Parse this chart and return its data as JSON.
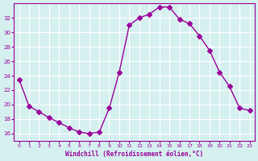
{
  "x": [
    0,
    1,
    2,
    3,
    4,
    5,
    6,
    7,
    8,
    9,
    10,
    11,
    12,
    13,
    14,
    15,
    16,
    17,
    18,
    19,
    20,
    21,
    22,
    23
  ],
  "y": [
    23.5,
    19.8,
    19.0,
    18.2,
    17.5,
    16.8,
    16.2,
    16.0,
    16.2,
    19.5,
    24.5,
    31.0,
    32.0,
    32.5,
    33.5,
    33.5,
    31.8,
    31.2,
    29.5,
    27.5,
    24.5,
    22.5,
    19.5,
    19.2
  ],
  "line_color": "#990099",
  "marker": "D",
  "marker_size": 3,
  "bg_color": "#d6f0f0",
  "grid_color": "#ffffff",
  "xlabel": "Windchill (Refroidissement éolien,°C)",
  "xlabel_color": "#990099",
  "tick_color": "#990099",
  "ylim": [
    15,
    34
  ],
  "xlim": [
    -0.5,
    23.5
  ],
  "yticks": [
    16,
    18,
    20,
    22,
    24,
    26,
    28,
    30,
    32
  ],
  "xticks": [
    0,
    1,
    2,
    3,
    4,
    5,
    6,
    7,
    8,
    9,
    10,
    11,
    12,
    13,
    14,
    15,
    16,
    17,
    18,
    19,
    20,
    21,
    22,
    23
  ],
  "spine_color": "#990099"
}
